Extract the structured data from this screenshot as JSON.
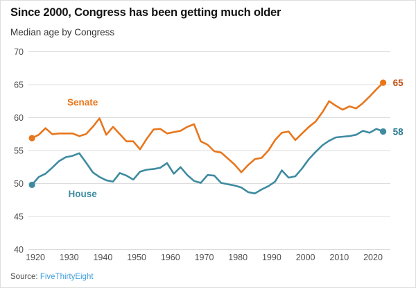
{
  "header": {
    "title": "Since 2000, Congress has been getting much older",
    "subtitle": "Median age by Congress"
  },
  "footer": {
    "source_label": "Source:",
    "source_link": "FiveThirtyEight"
  },
  "colors": {
    "background": "#ffffff",
    "title_text": "#121212",
    "subtitle_text": "#333333",
    "grid": "#dcdcdc",
    "axis_text": "#4d4d4d",
    "senate_line": "#e8761c",
    "senate_end_label": "#c24c0e",
    "house_line": "#3e8ba0",
    "house_end_label": "#26778e",
    "source_text": "#4a4a4a",
    "source_link": "#3f9fdc"
  },
  "chart_data": {
    "type": "line",
    "title": "Since 2000, Congress has been getting much older",
    "subtitle": "Median age by Congress",
    "xlabel": "",
    "ylabel": "",
    "xlim": [
      1917,
      2026
    ],
    "ylim": [
      40,
      70
    ],
    "yticks": [
      40,
      45,
      50,
      55,
      60,
      65,
      70
    ],
    "xticks": [
      1920,
      1930,
      1940,
      1950,
      1960,
      1970,
      1980,
      1990,
      2000,
      2010,
      2020
    ],
    "grid": "horizontal",
    "legend_position": "inline-annotations",
    "x": [
      1919,
      1921,
      1923,
      1925,
      1927,
      1929,
      1931,
      1933,
      1935,
      1937,
      1939,
      1941,
      1943,
      1945,
      1947,
      1949,
      1951,
      1953,
      1955,
      1957,
      1959,
      1961,
      1963,
      1965,
      1967,
      1969,
      1971,
      1973,
      1975,
      1977,
      1979,
      1981,
      1983,
      1985,
      1987,
      1989,
      1991,
      1993,
      1995,
      1997,
      1999,
      2001,
      2003,
      2005,
      2007,
      2009,
      2011,
      2013,
      2015,
      2017,
      2019,
      2021,
      2023
    ],
    "series": [
      {
        "name": "Senate",
        "end_label": "65",
        "label_pos": {
          "x": 1934,
          "y": 62.3
        },
        "values": [
          56.9,
          57.4,
          58.4,
          57.5,
          57.6,
          57.6,
          57.6,
          57.2,
          57.5,
          58.6,
          59.9,
          57.4,
          58.6,
          57.5,
          56.4,
          56.4,
          55.2,
          56.8,
          58.2,
          58.3,
          57.6,
          57.8,
          58.0,
          58.6,
          59.0,
          56.4,
          55.9,
          54.9,
          54.7,
          53.8,
          52.9,
          51.7,
          52.8,
          53.7,
          53.9,
          55.0,
          56.6,
          57.7,
          57.9,
          56.6,
          57.6,
          58.6,
          59.4,
          60.8,
          62.5,
          61.8,
          61.2,
          61.7,
          61.4,
          62.2,
          63.2,
          64.3,
          65.3
        ]
      },
      {
        "name": "House",
        "end_label": "58",
        "label_pos": {
          "x": 1934,
          "y": 48.4
        },
        "values": [
          49.8,
          51.0,
          51.5,
          52.4,
          53.4,
          54.0,
          54.2,
          54.6,
          53.2,
          51.7,
          51.0,
          50.5,
          50.3,
          51.6,
          51.2,
          50.6,
          51.8,
          52.1,
          52.2,
          52.4,
          53.1,
          51.5,
          52.5,
          51.3,
          50.4,
          50.1,
          51.3,
          51.2,
          50.1,
          49.9,
          49.7,
          49.4,
          48.7,
          48.5,
          49.1,
          49.6,
          50.3,
          52.0,
          50.9,
          51.1,
          52.3,
          53.7,
          54.8,
          55.8,
          56.5,
          57.0,
          57.1,
          57.2,
          57.4,
          58.0,
          57.7,
          58.3,
          57.9
        ]
      }
    ]
  }
}
